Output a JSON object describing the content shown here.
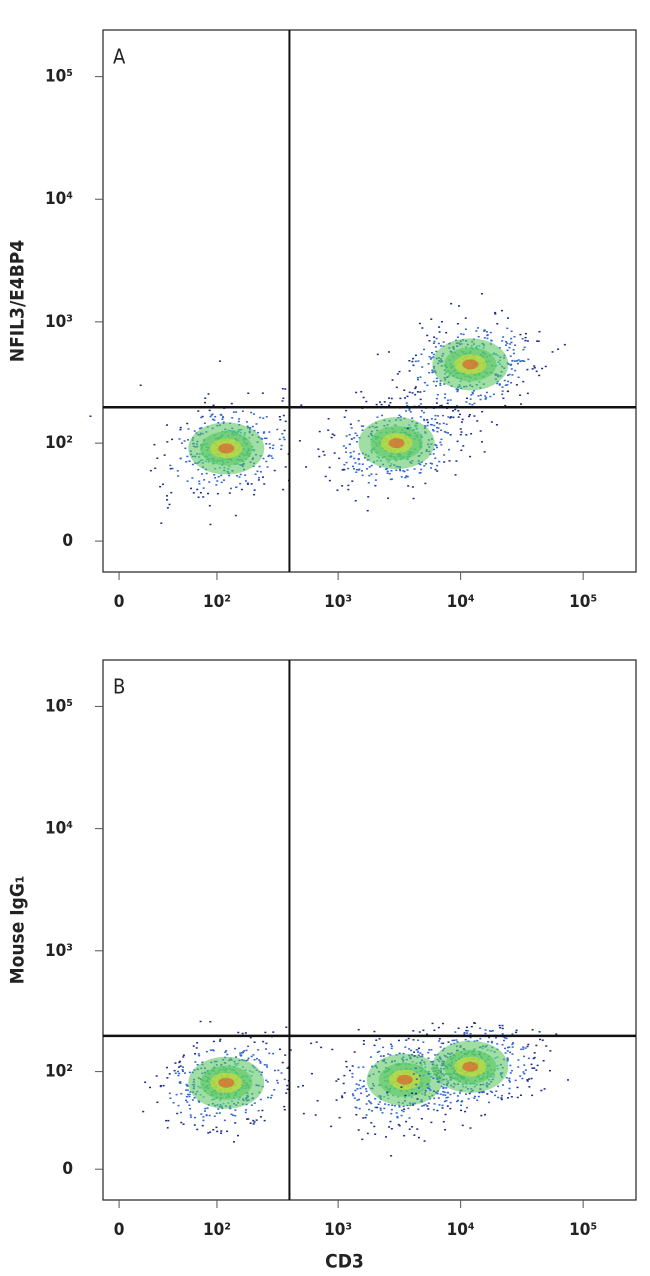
{
  "chart_data": [
    {
      "type": "scatter",
      "panel_label": "A",
      "ylabel": "NFIL3/E4BP4",
      "scale": "biexponential",
      "x": [
        120,
        3000,
        12000
      ],
      "values": [
        90,
        100,
        450
      ],
      "quadrant_gates": {
        "x": 400,
        "y": 200
      },
      "xlim": [
        -10,
        270000
      ],
      "ylim": [
        -20,
        240000
      ],
      "xticks": [
        0,
        {
          "value": 100,
          "label": "10²"
        },
        {
          "value": 1000,
          "label": "10³"
        },
        {
          "value": 10000,
          "label": "10⁴"
        },
        {
          "value": 100000,
          "label": "10⁵"
        }
      ],
      "yticks": [
        0,
        {
          "value": 100,
          "label": "10²"
        },
        {
          "value": 1000,
          "label": "10³"
        },
        {
          "value": 10000,
          "label": "10⁴"
        },
        {
          "value": 100000,
          "label": "10⁵"
        }
      ]
    },
    {
      "type": "scatter",
      "panel_label": "B",
      "ylabel": "Mouse IgG₁",
      "xlabel": "CD3",
      "scale": "biexponential",
      "x": [
        120,
        3500,
        12000
      ],
      "values": [
        80,
        85,
        110
      ],
      "quadrant_gates": {
        "x": 400,
        "y": 200
      },
      "xlim": [
        -10,
        270000
      ],
      "ylim": [
        -20,
        240000
      ],
      "xticks": [
        0,
        {
          "value": 100,
          "label": "10²"
        },
        {
          "value": 1000,
          "label": "10³"
        },
        {
          "value": 10000,
          "label": "10⁴"
        },
        {
          "value": 100000,
          "label": "10⁵"
        }
      ],
      "yticks": [
        0,
        {
          "value": 100,
          "label": "10²"
        },
        {
          "value": 1000,
          "label": "10³"
        },
        {
          "value": 10000,
          "label": "10⁴"
        },
        {
          "value": 100000,
          "label": "10⁵"
        }
      ]
    }
  ]
}
